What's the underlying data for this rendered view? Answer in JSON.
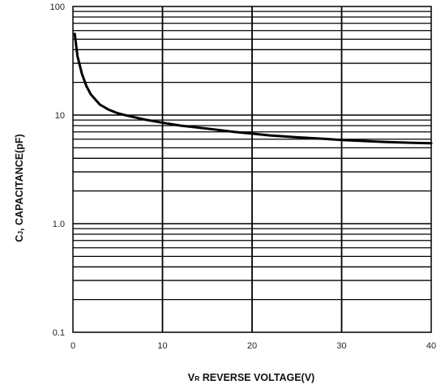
{
  "chart_data": {
    "type": "line",
    "title": "",
    "xlabel": {
      "prefix": "V",
      "subscript": "R",
      "text": " REVERSE VOLTAGE(V)"
    },
    "ylabel": {
      "prefix": "C",
      "subscript": "J",
      "text": ", CAPACITANCE(pF)"
    },
    "xlim": [
      0,
      40
    ],
    "ylim": [
      0.1,
      100
    ],
    "yscale": "log",
    "grid": true,
    "x_ticks": [
      0,
      10,
      20,
      30,
      40
    ],
    "x_tick_labels": [
      "0",
      "10",
      "20",
      "30",
      "40"
    ],
    "y_ticks": [
      0.1,
      1,
      10,
      100
    ],
    "y_tick_labels": [
      "0.1",
      "1.0",
      "10",
      "100"
    ],
    "series": [
      {
        "x": [
          0.2,
          0.5,
          1,
          1.5,
          2,
          3,
          4,
          5,
          6,
          8,
          10,
          12,
          15,
          18,
          20,
          22,
          25,
          28,
          30,
          33,
          35,
          38,
          40
        ],
        "y": [
          56,
          35,
          24,
          18.5,
          15.5,
          12.5,
          11.2,
          10.4,
          9.9,
          9.1,
          8.5,
          8.0,
          7.5,
          7.0,
          6.75,
          6.5,
          6.25,
          6.05,
          5.9,
          5.75,
          5.65,
          5.55,
          5.5
        ]
      }
    ]
  }
}
